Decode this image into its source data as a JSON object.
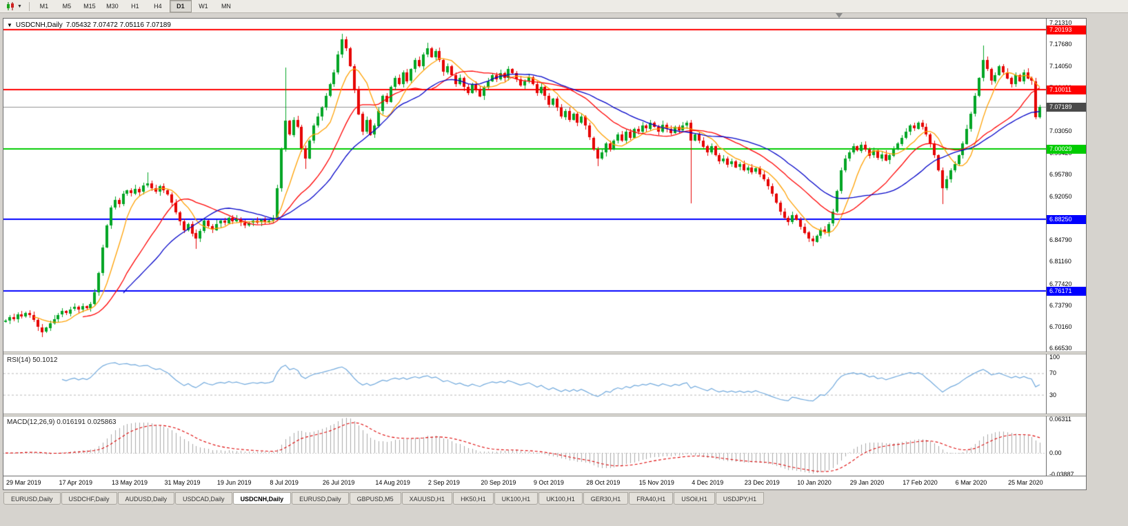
{
  "toolbar": {
    "chart_button_icon": "candlestick-chart-icon",
    "periods": [
      {
        "label": "M1",
        "active": false
      },
      {
        "label": "M5",
        "active": false
      },
      {
        "label": "M15",
        "active": false
      },
      {
        "label": "M30",
        "active": false
      },
      {
        "label": "H1",
        "active": false
      },
      {
        "label": "H4",
        "active": false
      },
      {
        "label": "D1",
        "active": true
      },
      {
        "label": "W1",
        "active": false
      },
      {
        "label": "MN",
        "active": false
      }
    ]
  },
  "chart": {
    "type": "candlestick",
    "title": {
      "symbol": "USDCNH,Daily",
      "ohlc": "7.05432 7.07472 7.05116 7.07189"
    },
    "bull_color": "#00A524",
    "bear_color": "#E60000",
    "price_axis": {
      "max": 7.22,
      "min": 6.66,
      "ticks": [
        "7.21310",
        "7.17680",
        "7.14050",
        "7.10420",
        "7.06790",
        "7.03050",
        "6.99420",
        "6.95780",
        "6.92050",
        "6.88420",
        "6.84790",
        "6.81160",
        "6.77420",
        "6.73790",
        "6.70160",
        "6.66530"
      ]
    },
    "hlines": [
      {
        "price": 7.20193,
        "color": "#FF0000",
        "label": "7.20193"
      },
      {
        "price": 7.10011,
        "color": "#FF0000",
        "label": "7.10011"
      },
      {
        "price": 7.00029,
        "color": "#00CC00",
        "label": "7.00029"
      },
      {
        "price": 6.8825,
        "color": "#0000FF",
        "label": "6.88250"
      },
      {
        "price": 6.76171,
        "color": "#0000FF",
        "label": "6.76171"
      }
    ],
    "current_price": {
      "value": 7.07189,
      "label": "7.07189",
      "badge_color": "#4A4A4A",
      "line_color": "#909090"
    },
    "ma": [
      {
        "period": 8,
        "color": "#FFA000"
      },
      {
        "period": 20,
        "color": "#FF0000"
      },
      {
        "period": 30,
        "color": "#0000C8"
      }
    ],
    "first_open": 6.71,
    "closes": [
      6.712,
      6.718,
      6.7145,
      6.723,
      6.719,
      6.725,
      6.721,
      6.713,
      6.701,
      6.693,
      6.7,
      6.708,
      6.715,
      6.722,
      6.728,
      6.724,
      6.731,
      6.735,
      6.73,
      6.736,
      6.733,
      6.74,
      6.76,
      6.792,
      6.835,
      6.872,
      6.902,
      6.915,
      6.908,
      6.925,
      6.931,
      6.926,
      6.934,
      6.928,
      6.939,
      6.943,
      6.935,
      6.929,
      6.938,
      6.931,
      6.924,
      6.91,
      6.894,
      6.879,
      6.864,
      6.875,
      6.859,
      6.85,
      6.863,
      6.88,
      6.871,
      6.865,
      6.875,
      6.88,
      6.876,
      6.885,
      6.879,
      6.883,
      6.877,
      6.872,
      6.876,
      6.88,
      6.877,
      6.881,
      6.878,
      6.88,
      6.885,
      6.935,
      7.0,
      7.048,
      7.025,
      7.05,
      7.038,
      7.002,
      6.985,
      7.015,
      7.04,
      7.055,
      7.07,
      7.09,
      7.11,
      7.13,
      7.16,
      7.185,
      7.17,
      7.14,
      7.1,
      7.06,
      7.03,
      7.05,
      7.025,
      7.04,
      7.065,
      7.09,
      7.08,
      7.105,
      7.12,
      7.11,
      7.13,
      7.115,
      7.135,
      7.15,
      7.14,
      7.16,
      7.17,
      7.155,
      7.165,
      7.15,
      7.13,
      7.14,
      7.125,
      7.11,
      7.12,
      7.105,
      7.095,
      7.11,
      7.1,
      7.09,
      7.105,
      7.115,
      7.125,
      7.118,
      7.128,
      7.12,
      7.135,
      7.128,
      7.118,
      7.108,
      7.115,
      7.122,
      7.11,
      7.095,
      7.105,
      7.09,
      7.075,
      7.085,
      7.07,
      7.055,
      7.065,
      7.05,
      7.06,
      7.045,
      7.055,
      7.04,
      7.02,
      7.0,
      6.985,
      6.995,
      7.01,
      7.0,
      7.015,
      7.025,
      7.015,
      7.03,
      7.02,
      7.035,
      7.03,
      7.04,
      7.035,
      7.045,
      7.038,
      7.03,
      7.042,
      7.035,
      7.028,
      7.038,
      7.032,
      7.04,
      7.045,
      7.015,
      7.025,
      7.015,
      7.005,
      6.995,
      7.005,
      6.99,
      6.98,
      6.985,
      6.975,
      6.98,
      6.97,
      6.975,
      6.965,
      6.97,
      6.962,
      6.968,
      6.958,
      6.95,
      6.938,
      6.925,
      6.91,
      6.895,
      6.885,
      6.878,
      6.89,
      6.882,
      6.87,
      6.86,
      6.85,
      6.845,
      6.855,
      6.865,
      6.86,
      6.875,
      6.895,
      6.93,
      6.965,
      6.985,
      6.995,
      7.005,
      6.998,
      7.008,
      7.0,
      6.99,
      6.998,
      6.985,
      6.992,
      6.982,
      6.99,
      7.0,
      7.01,
      7.02,
      7.03,
      7.04,
      7.035,
      7.045,
      7.038,
      7.025,
      7.01,
      6.99,
      6.965,
      6.935,
      6.95,
      6.965,
      6.975,
      6.99,
      7.01,
      7.035,
      7.06,
      7.09,
      7.12,
      7.15,
      7.135,
      7.115,
      7.125,
      7.14,
      7.13,
      7.12,
      7.11,
      7.125,
      7.115,
      7.13,
      7.12,
      7.115,
      7.0543,
      7.0719
    ],
    "wick_overrides": [
      {
        "i": 9,
        "l": 6.684
      },
      {
        "i": 35,
        "h": 6.962
      },
      {
        "i": 47,
        "l": 6.833
      },
      {
        "i": 69,
        "h": 7.138
      },
      {
        "i": 74,
        "l": 6.968
      },
      {
        "i": 83,
        "h": 7.195
      },
      {
        "i": 104,
        "h": 7.18
      },
      {
        "i": 146,
        "l": 6.972
      },
      {
        "i": 169,
        "l": 6.91
      },
      {
        "i": 199,
        "l": 6.838
      },
      {
        "i": 231,
        "l": 6.908
      },
      {
        "i": 241,
        "h": 7.175
      },
      {
        "i": 255,
        "h": 7.0747,
        "l": 7.0512
      }
    ]
  },
  "rsi": {
    "label": "RSI(14) 50.1012",
    "period": 14,
    "color": "#6FA8DC",
    "levels": [
      70,
      30
    ],
    "axis_ticks": [
      "100",
      "70",
      "30"
    ],
    "scale_max": 105,
    "scale_min": -5
  },
  "macd": {
    "label": "MACD(12,26,9) 0.016191 0.025863",
    "fast": 12,
    "slow": 26,
    "signal": 9,
    "hist_color": "#A8A8A8",
    "signal_color": "#DD0000",
    "axis_ticks": [
      "0.06311",
      "0.00",
      "-0.03887"
    ],
    "scale_max": 0.068,
    "scale_min": -0.042
  },
  "date_axis": {
    "candles_per_label": 13,
    "labels": [
      "29 Mar 2019",
      "17 Apr 2019",
      "13 May 2019",
      "31 May 2019",
      "19 Jun 2019",
      "8 Jul 2019",
      "26 Jul 2019",
      "14 Aug 2019",
      "2 Sep 2019",
      "20 Sep 2019",
      "9 Oct 2019",
      "28 Oct 2019",
      "15 Nov 2019",
      "4 Dec 2019",
      "23 Dec 2019",
      "10 Jan 2020",
      "29 Jan 2020",
      "17 Feb 2020",
      "6 Mar 2020",
      "25 Mar 2020"
    ]
  },
  "tabs": [
    {
      "label": "EURUSD,Daily",
      "active": false
    },
    {
      "label": "USDCHF,Daily",
      "active": false
    },
    {
      "label": "AUDUSD,Daily",
      "active": false
    },
    {
      "label": "USDCAD,Daily",
      "active": false
    },
    {
      "label": "USDCNH,Daily",
      "active": true
    },
    {
      "label": "EURUSD,Daily",
      "active": false
    },
    {
      "label": "GBPUSD,M5",
      "active": false
    },
    {
      "label": "XAUUSD,H1",
      "active": false
    },
    {
      "label": "HK50,H1",
      "active": false
    },
    {
      "label": "UK100,H1",
      "active": false
    },
    {
      "label": "UK100,H1",
      "active": false
    },
    {
      "label": "GER30,H1",
      "active": false
    },
    {
      "label": "FRA40,H1",
      "active": false
    },
    {
      "label": "USOil,H1",
      "active": false
    },
    {
      "label": "USDJPY,H1",
      "active": false
    }
  ]
}
